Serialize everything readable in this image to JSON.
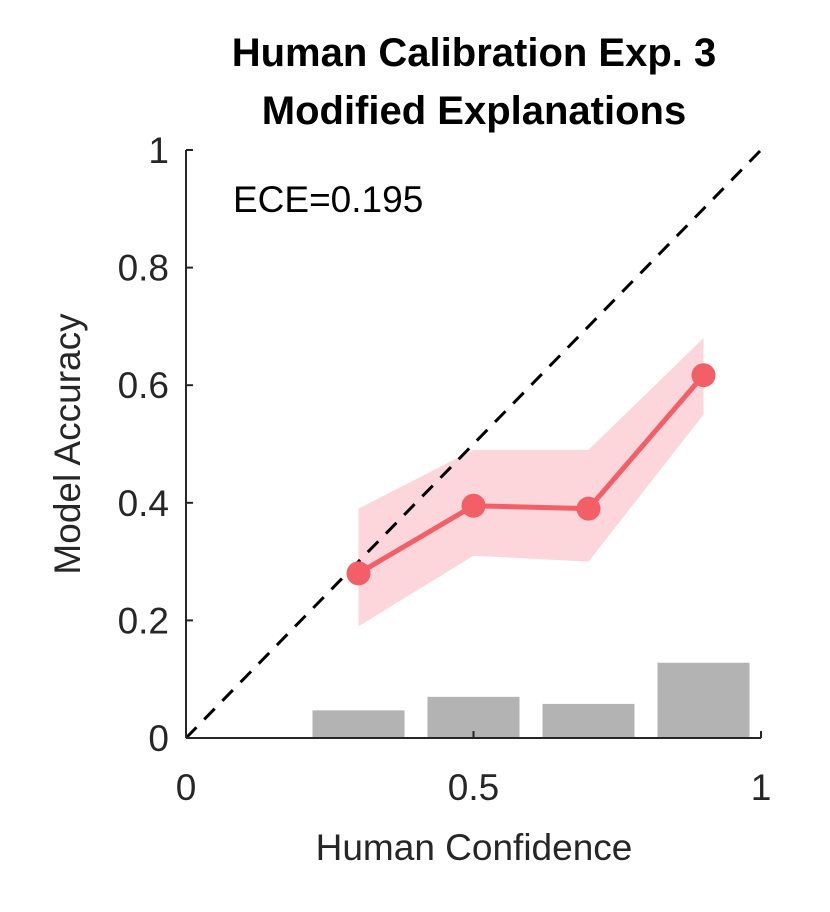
{
  "chart_data": {
    "type": "line",
    "title_lines": [
      "Human Calibration Exp. 3",
      "Modified Explanations"
    ],
    "xlabel": "Human Confidence",
    "ylabel": "Model Accuracy",
    "xlim": [
      0,
      1
    ],
    "ylim": [
      0,
      1
    ],
    "x_ticks": [
      0,
      0.5,
      1
    ],
    "x_tick_labels": [
      "0",
      "0.5",
      "1"
    ],
    "y_ticks": [
      0,
      0.2,
      0.4,
      0.6,
      0.8,
      1
    ],
    "y_tick_labels": [
      "0",
      "0.2",
      "0.4",
      "0.6",
      "0.8",
      "1"
    ],
    "annotation": "ECE=0.195",
    "reference_line": {
      "name": "perfect calibration",
      "x": [
        0,
        1
      ],
      "y": [
        0,
        1
      ],
      "style": "dashed",
      "color": "#000000"
    },
    "series": [
      {
        "name": "Model Accuracy",
        "x": [
          0.3,
          0.5,
          0.7,
          0.9
        ],
        "y": [
          0.28,
          0.395,
          0.39,
          0.617
        ],
        "lower": [
          0.19,
          0.31,
          0.3,
          0.55
        ],
        "upper": [
          0.39,
          0.49,
          0.49,
          0.68
        ],
        "color": "#f25f66",
        "band_color": "#fcd6da"
      }
    ],
    "histogram": {
      "name": "confidence distribution",
      "bins": [
        {
          "x_start": 0.22,
          "x_end": 0.38,
          "height": 0.047
        },
        {
          "x_start": 0.42,
          "x_end": 0.58,
          "height": 0.07
        },
        {
          "x_start": 0.62,
          "x_end": 0.78,
          "height": 0.058
        },
        {
          "x_start": 0.82,
          "x_end": 0.98,
          "height": 0.128
        }
      ],
      "color": "#b3b3b3"
    },
    "axis_color": "#262626"
  }
}
